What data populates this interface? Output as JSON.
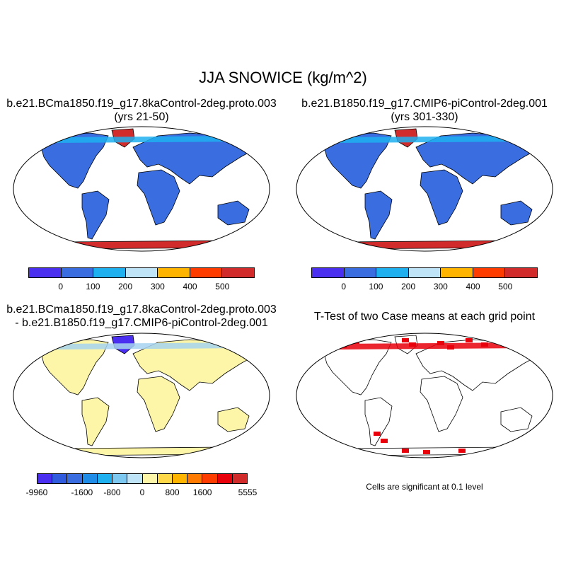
{
  "title": "JJA SNOWICE (kg/m^2)",
  "panels": [
    {
      "title_line1": "b.e21.BCma1850.f19_g17.8kaControl-2deg.proto.003",
      "title_line2": "(yrs 21-50)",
      "land_color": "#3a6ee0",
      "ice_color": "#d22b2b",
      "greenland_color": "#d22b2b",
      "arctic_color": "#1fb0f0"
    },
    {
      "title_line1": "b.e21.B1850.f19_g17.CMIP6-piControl-2deg.001",
      "title_line2": "(yrs 301-330)",
      "land_color": "#3a6ee0",
      "ice_color": "#d22b2b",
      "greenland_color": "#d22b2b",
      "arctic_color": "#1fb0f0"
    },
    {
      "title_line1": "b.e21.BCma1850.f19_g17.8kaControl-2deg.proto.003",
      "title_line2": "- b.e21.B1850.f19_g17.CMIP6-piControl-2deg.001",
      "land_color": "#fdf6a8",
      "ice_color": "#fdf6a8",
      "greenland_color": "#4a2ff0",
      "arctic_color": "#a6d4f0"
    },
    {
      "title_line1": "T-Test of two Case means at each grid point",
      "title_line2": "",
      "land_color": "#ffffff",
      "ice_color": "#ffffff",
      "greenland_color": "#ffffff",
      "arctic_color": "#e8000b",
      "significance_color": "#e8000b"
    }
  ],
  "colorbar_abs": {
    "colors": [
      "#4a2ff0",
      "#3a6ee0",
      "#1fb0f0",
      "#bfe4f7",
      "#ffb400",
      "#ff3c00",
      "#d22b2b"
    ],
    "labels": [
      "0",
      "100",
      "200",
      "300",
      "400",
      "500"
    ]
  },
  "colorbar_diff": {
    "colors": [
      "#4a2ff0",
      "#2f5bdc",
      "#3a6ee0",
      "#1f8de8",
      "#1fb0f0",
      "#7cc8f0",
      "#bfe4f7",
      "#fdf6a8",
      "#ffd84a",
      "#ffb400",
      "#ff7a00",
      "#ff3c00",
      "#e8000b",
      "#d22b2b"
    ],
    "labels": [
      "-9960",
      "-1600",
      "-800",
      "0",
      "800",
      "1600",
      "5555"
    ]
  },
  "ttest_note": "Cells are significant at 0.1 level"
}
